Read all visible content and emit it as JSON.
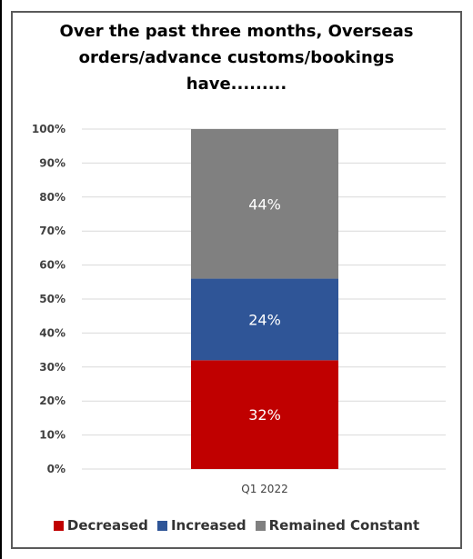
{
  "chart_data": {
    "type": "bar",
    "stacked": true,
    "title": "Over the past three months, Overseas orders/advance customs/bookings have.........",
    "categories": [
      "Q1 2022"
    ],
    "series": [
      {
        "name": "Decreased",
        "values": [
          32
        ],
        "color": "#C00000",
        "label": "32%"
      },
      {
        "name": "Increased",
        "values": [
          24
        ],
        "color": "#2F5597",
        "label": "24%"
      },
      {
        "name": "Remained Constant",
        "values": [
          44
        ],
        "color": "#808080",
        "label": "44%"
      }
    ],
    "ylim": [
      0,
      100
    ],
    "yticks": [
      "0%",
      "10%",
      "20%",
      "30%",
      "40%",
      "50%",
      "60%",
      "70%",
      "80%",
      "90%",
      "100%"
    ],
    "grid": true,
    "legend_position": "bottom"
  }
}
